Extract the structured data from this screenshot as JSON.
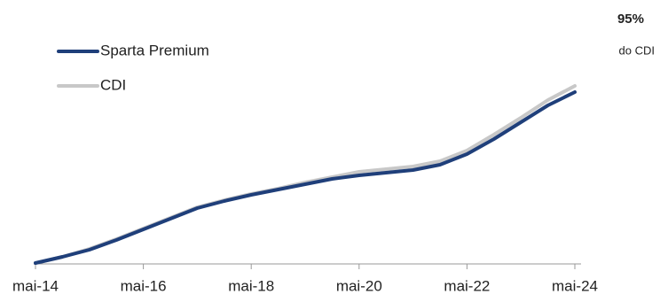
{
  "chart_data": {
    "type": "line",
    "annotations": [
      "95%",
      "do CDI"
    ],
    "categories": [
      "mai-14",
      null,
      null,
      null,
      "mai-16",
      null,
      null,
      null,
      "mai-18",
      null,
      null,
      null,
      "mai-20",
      null,
      null,
      null,
      "mai-22",
      null,
      null,
      null,
      "mai-24"
    ],
    "series": [
      {
        "name": "Sparta Premium",
        "color": "#1f3f7a",
        "values": [
          1,
          8,
          16,
          27,
          39,
          51,
          63,
          71,
          78,
          84,
          90,
          96,
          100,
          103,
          106,
          112,
          124,
          141,
          160,
          179,
          194
        ]
      },
      {
        "name": "CDI",
        "color": "#c8c8c8",
        "values": [
          1,
          8,
          17,
          28,
          40,
          52,
          64,
          72,
          79,
          85,
          92,
          98,
          104,
          107,
          110,
          116,
          128,
          146,
          165,
          185,
          201
        ]
      }
    ],
    "ylim": [
      0,
      220
    ]
  }
}
